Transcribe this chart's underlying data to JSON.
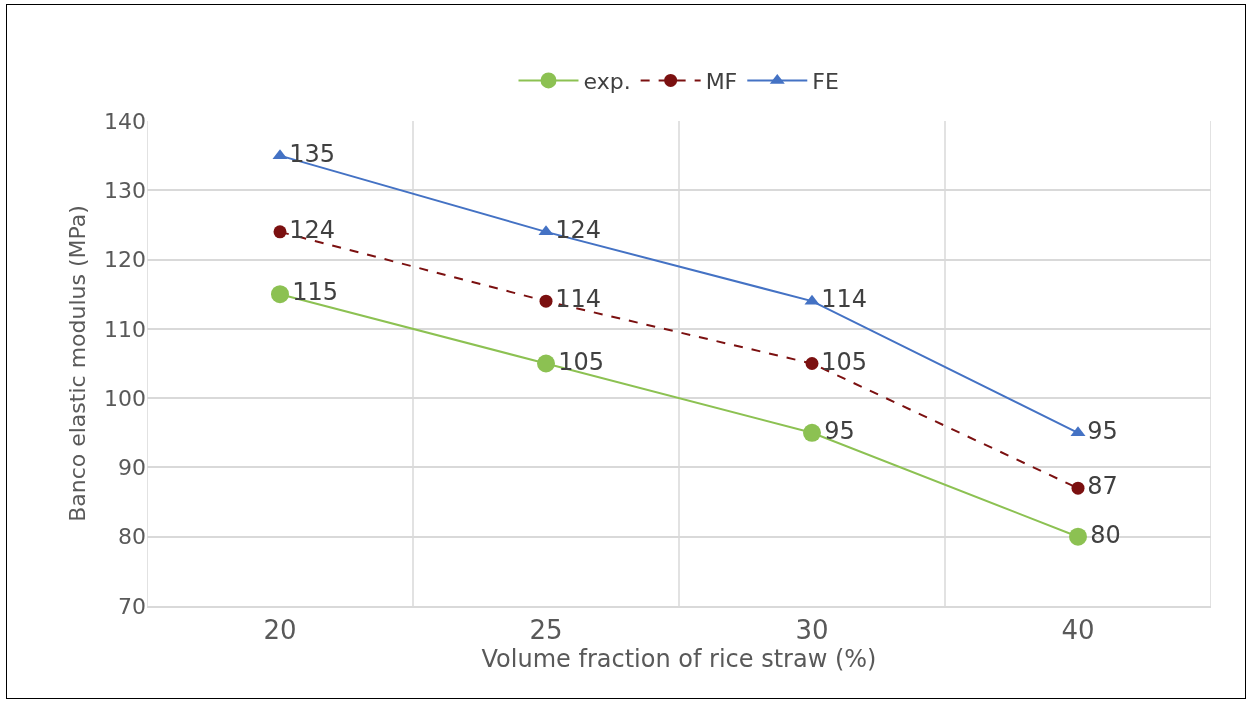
{
  "chart_data": {
    "type": "line",
    "xlabel": "Volume fraction of rice straw (%)",
    "ylabel": "Banco elastic modulus (MPa)",
    "categories": [
      "20",
      "25",
      "30",
      "40"
    ],
    "series": [
      {
        "name": "exp.",
        "color": "#8cc152",
        "values": [
          115,
          105,
          95,
          80
        ],
        "marker": "circle",
        "line_style": "solid"
      },
      {
        "name": "MF",
        "color": "#7b1010",
        "values": [
          124,
          114,
          105,
          87
        ],
        "marker": "circle",
        "line_style": "dashed"
      },
      {
        "name": "FE",
        "color": "#4472c4",
        "values": [
          135,
          124,
          114,
          95
        ],
        "marker": "triangle",
        "line_style": "solid"
      }
    ],
    "ylim": [
      70,
      140
    ],
    "yticks": [
      70,
      80,
      90,
      100,
      110,
      120,
      130,
      140
    ],
    "grid": true,
    "legend": "top",
    "data_labels": true
  }
}
